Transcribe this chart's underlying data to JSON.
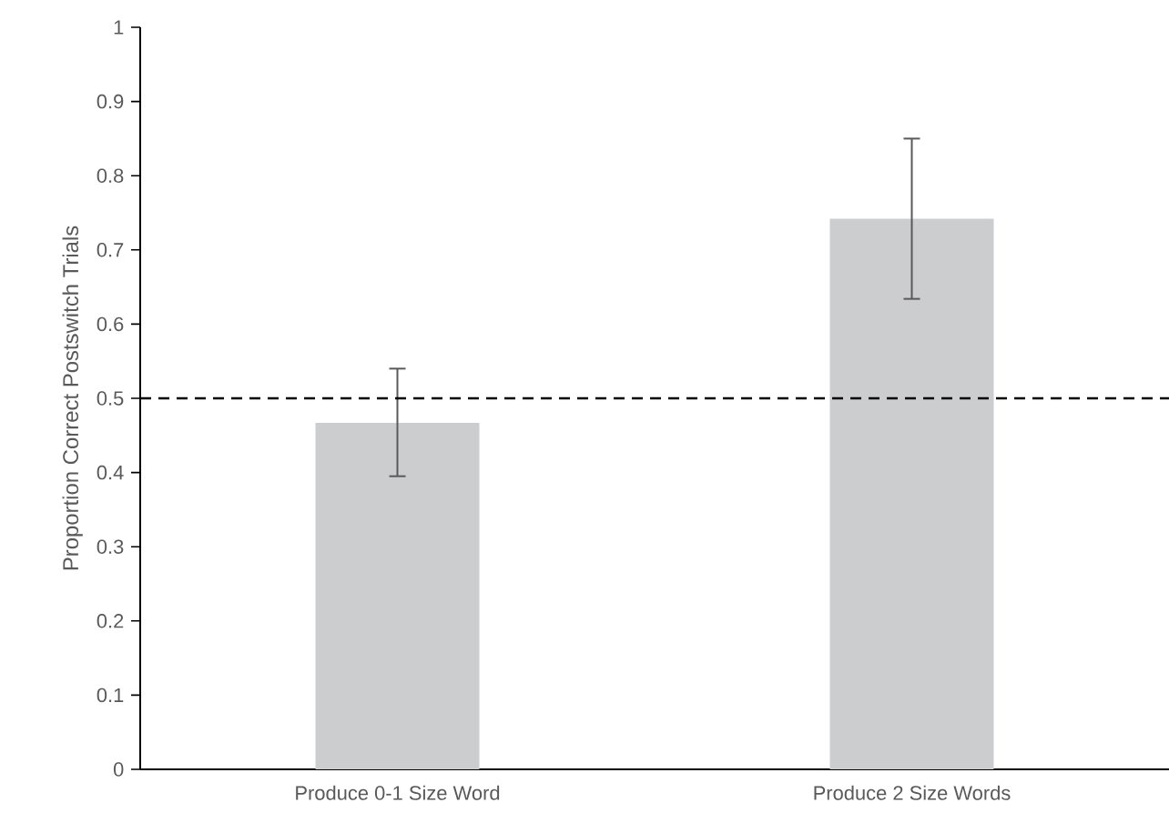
{
  "chart_data": {
    "type": "bar",
    "ylabel": "Proportion Correct Postswitch Trials",
    "categories": [
      "Produce 0-1 Size Word",
      "Produce 2 Size Words"
    ],
    "values": [
      0.467,
      0.742
    ],
    "color": "#cccdcf",
    "errors": [
      [
        0.395,
        0.54
      ],
      [
        0.634,
        0.85
      ]
    ],
    "ylim": [
      0,
      1
    ],
    "yticks": [
      0,
      0.1,
      0.2,
      0.3,
      0.4,
      0.5,
      0.6,
      0.7,
      0.8,
      0.9,
      1
    ],
    "ref_lines": [
      {
        "axis": "y",
        "value": 0.5,
        "color": "#000000",
        "line_style": "dashed"
      }
    ]
  }
}
